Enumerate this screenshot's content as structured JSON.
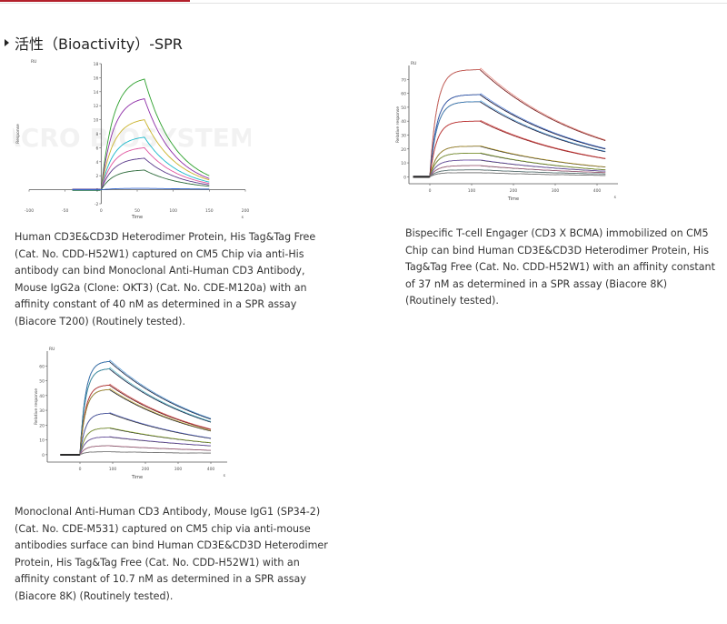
{
  "section": {
    "title": "活性（Bioactivity）-SPR"
  },
  "figures": [
    {
      "caption": "Human CD3E&CD3D Heterodimer Protein, His Tag&Tag Free (Cat. No. CDD-H52W1) captured on CM5 Chip via anti-His antibody can bind Monoclonal Anti-Human CD3 Antibody, Mouse IgG2a (Clone: OKT3) (Cat. No. CDE-M120a) with an affinity constant of 40 nM as determined in a SPR assay (Biacore T200) (Routinely tested).",
      "watermark": "ACRO BIOSYSTEMS",
      "chart_data": {
        "type": "line",
        "title": "",
        "xlabel": "Time",
        "ylabel": "Response",
        "x_unit": "s",
        "y_unit": "RU",
        "xlim": [
          -100,
          200
        ],
        "ylim": [
          -2,
          18
        ],
        "x_ticks": [
          "-100",
          "-50",
          "0",
          "50",
          "100",
          "150",
          "200"
        ],
        "y_ticks": [
          "-2",
          "0",
          "2",
          "4",
          "6",
          "8",
          "10",
          "12",
          "14",
          "16",
          "18"
        ],
        "grid": false,
        "model": {
          "inject_start": 0,
          "inject_end": 60,
          "end": 150,
          "start": -40
        },
        "series": [
          {
            "color": "#2ca02c",
            "plateau": 15.8,
            "final": 2.0
          },
          {
            "color": "#8c2ba6",
            "plateau": 13.0,
            "final": 1.6
          },
          {
            "color": "#c9b22a",
            "plateau": 10.0,
            "final": 1.4
          },
          {
            "color": "#17b7c9",
            "plateau": 7.5,
            "final": 1.1
          },
          {
            "color": "#e0559f",
            "plateau": 6.0,
            "final": 0.9
          },
          {
            "color": "#5a3a8a",
            "plateau": 4.5,
            "final": 0.7
          },
          {
            "color": "#2c6a3a",
            "plateau": 2.8,
            "final": 0.5
          },
          {
            "color": "#3366cc",
            "plateau": 0.2,
            "final": 0.1
          }
        ]
      }
    },
    {
      "caption": "Bispecific T-cell Engager (CD3 X BCMA) immobilized on CM5 Chip can bind Human CD3E&CD3D Heterodimer Protein, His Tag&Tag Free (Cat. No. CDD-H52W1) with an affinity constant of 37 nM as determined in a SPR assay (Biacore 8K) (Routinely tested).",
      "chart_data": {
        "type": "line",
        "title": "",
        "xlabel": "Time",
        "ylabel": "Relative response",
        "x_unit": "s",
        "y_unit": "RU",
        "xlim": [
          -50,
          450
        ],
        "ylim": [
          -5,
          80
        ],
        "x_ticks": [
          "0",
          "100",
          "200",
          "300",
          "400"
        ],
        "y_ticks": [
          "0",
          "10",
          "20",
          "30",
          "40",
          "50",
          "60",
          "70"
        ],
        "grid": false,
        "model": {
          "inject_start": 0,
          "inject_end": 120,
          "end": 420,
          "start": -40
        },
        "series": [
          {
            "color": "#7a1f1f",
            "fit": "#e0746a",
            "plateau": 77,
            "final": 26
          },
          {
            "color": "#1a1a3a",
            "fit": "#3a6fd6",
            "plateau": 59,
            "final": 20
          },
          {
            "color": "#1a1a3a",
            "fit": "#4aa0e0",
            "plateau": 54,
            "final": 18
          },
          {
            "color": "#8b1a1a",
            "fit": "#d04040",
            "plateau": 40,
            "final": 13
          },
          {
            "color": "#2a2a2a",
            "fit": "#c8a830",
            "plateau": 22,
            "final": 7
          },
          {
            "color": "#2a2a2a",
            "fit": "#a0c040",
            "plateau": 17,
            "final": 5
          },
          {
            "color": "#2a2a2a",
            "fit": "#8a6ad0",
            "plateau": 12,
            "final": 4
          },
          {
            "color": "#2a2a2a",
            "fit": "#d080a0",
            "plateau": 8,
            "final": 3
          },
          {
            "color": "#2a2a2a",
            "fit": "#80a0a0",
            "plateau": 5,
            "final": 2
          },
          {
            "color": "#2a2a2a",
            "fit": "#a0a0a0",
            "plateau": 3,
            "final": 1
          }
        ]
      }
    },
    {
      "caption": "Monoclonal Anti-Human CD3 Antibody, Mouse IgG1 (SP34-2) (Cat. No. CDE-M531) captured on CM5 chip via anti-mouse antibodies surface can bind Human CD3E&CD3D Heterodimer Protein, His Tag&Tag Free (Cat. No. CDD-H52W1) with an affinity constant of 10.7 nM as determined in a SPR assay (Biacore 8K) (Routinely tested).",
      "chart_data": {
        "type": "line",
        "title": "",
        "xlabel": "Time",
        "ylabel": "Relative response",
        "x_unit": "s",
        "y_unit": "RU",
        "xlim": [
          -100,
          450
        ],
        "ylim": [
          -5,
          70
        ],
        "x_ticks": [
          "0",
          "100",
          "200",
          "300",
          "400"
        ],
        "y_ticks": [
          "0",
          "10",
          "20",
          "30",
          "40",
          "50",
          "60"
        ],
        "grid": false,
        "model": {
          "inject_start": 0,
          "inject_end": 90,
          "end": 400,
          "start": -60
        },
        "series": [
          {
            "color": "#1a2a4a",
            "fit": "#3a8ad0",
            "plateau": 63,
            "final": 24
          },
          {
            "color": "#1a2a4a",
            "fit": "#40b0c0",
            "plateau": 58,
            "final": 22
          },
          {
            "color": "#6a1a1a",
            "fit": "#d04040",
            "plateau": 47,
            "final": 17
          },
          {
            "color": "#2a2a2a",
            "fit": "#c8a830",
            "plateau": 44,
            "final": 16
          },
          {
            "color": "#2a2a2a",
            "fit": "#5a6ad0",
            "plateau": 28,
            "final": 11
          },
          {
            "color": "#2a2a2a",
            "fit": "#a0c040",
            "plateau": 18,
            "final": 8
          },
          {
            "color": "#2a2a2a",
            "fit": "#8a6ad0",
            "plateau": 12,
            "final": 6
          },
          {
            "color": "#2a2a2a",
            "fit": "#d080a0",
            "plateau": 6,
            "final": 3
          },
          {
            "color": "#2a2a2a",
            "fit": "#a0a0a0",
            "plateau": 2,
            "final": 1
          }
        ]
      }
    }
  ]
}
